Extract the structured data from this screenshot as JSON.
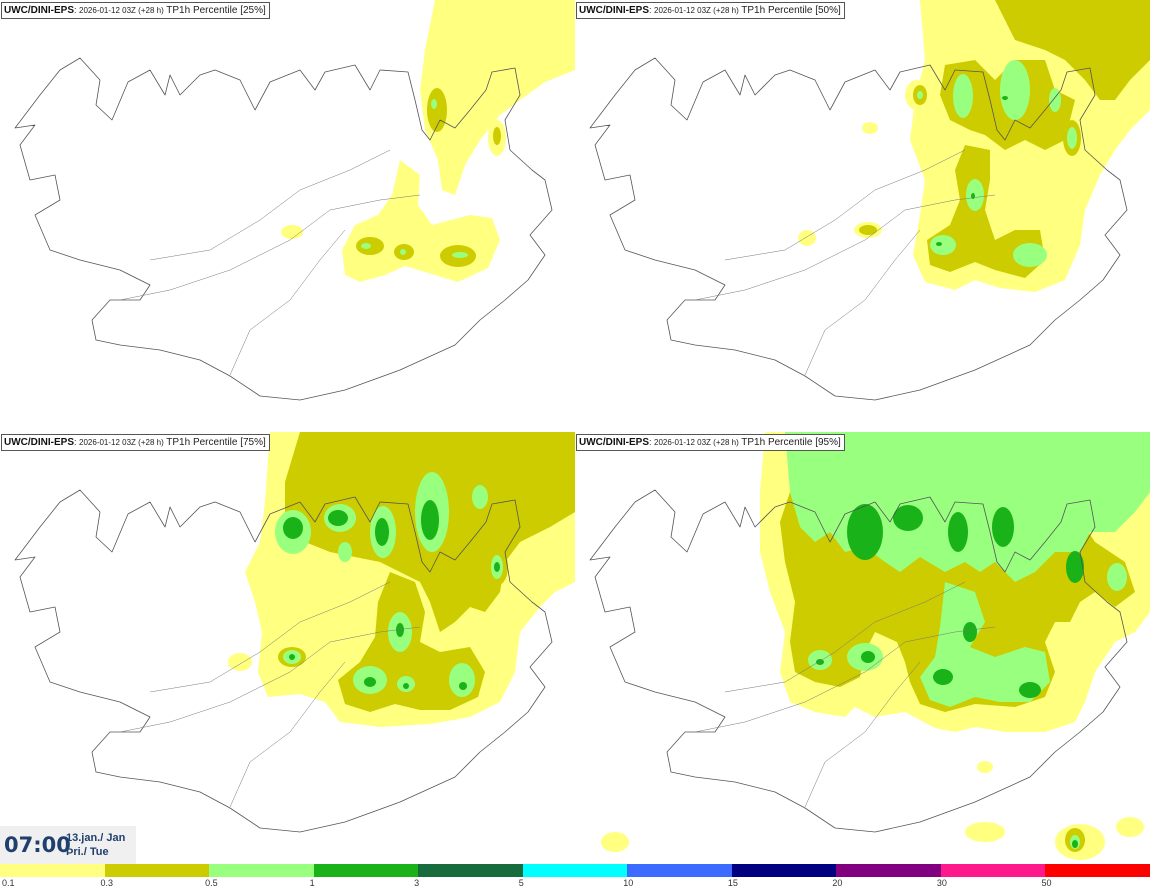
{
  "panels": [
    {
      "model": "UWC/DINI-EPS",
      "run": "2026-01-12 03Z (+28 h)",
      "param": "TP1h Percentile [25%]"
    },
    {
      "model": "UWC/DINI-EPS",
      "run": "2026-01-12 03Z (+28 h)",
      "param": "TP1h Percentile [50%]"
    },
    {
      "model": "UWC/DINI-EPS",
      "run": "2026-01-12 03Z (+28 h)",
      "param": "TP1h Percentile [75%]"
    },
    {
      "model": "UWC/DINI-EPS",
      "run": "2026-01-12 03Z (+28 h)",
      "param": "TP1h Percentile [95%]"
    }
  ],
  "valid_time": {
    "time": "07:00",
    "date": "13.jan./ Jan",
    "weekday": "Þri./ Tue"
  },
  "legend": {
    "labels": [
      "0.1",
      "0.3",
      "0.5",
      "1",
      "3",
      "5",
      "10",
      "15",
      "20",
      "30",
      "50"
    ],
    "colors": [
      "#ffff80",
      "#cccc00",
      "#99ff7f",
      "#19b219",
      "#176b3c",
      "#00ffff",
      "#3c6cff",
      "#000080",
      "#800080",
      "#ff1a8c",
      "#ff0000"
    ]
  },
  "map_colors": {
    "c01": "#ffff80",
    "c03": "#cccc00",
    "c05": "#99ff7f",
    "c1": "#19b219",
    "coast": "#555555"
  }
}
